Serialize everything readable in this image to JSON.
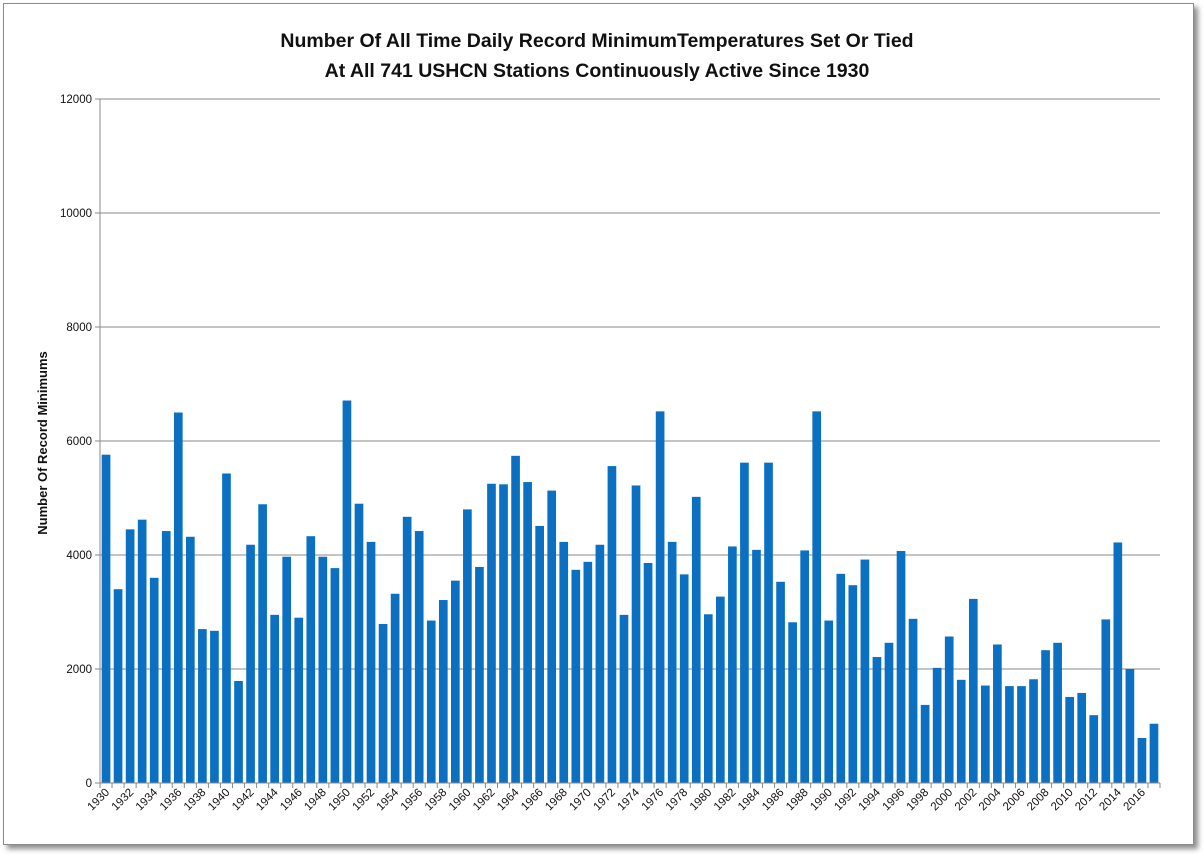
{
  "colors": {
    "bar": "#0b70c2",
    "grid": "#8a8a8a",
    "axis": "#8a8a8a",
    "frame_border": "#8c8c8c",
    "text": "#111111"
  },
  "chart_data": {
    "type": "bar",
    "title": "Number Of All Time Daily Record MinimumTemperatures Set Or Tied",
    "subtitle": "At All 741 USHCN Stations Continuously Active Since 1930",
    "xlabel": "",
    "ylabel": "Number Of Record Minimums",
    "ylim": [
      0,
      12000
    ],
    "yticks": [
      "0",
      "2000",
      "4000",
      "6000",
      "8000",
      "10000",
      "12000"
    ],
    "grid": true,
    "legend": "none",
    "categories": [
      "1930",
      "1931",
      "1932",
      "1933",
      "1934",
      "1935",
      "1936",
      "1937",
      "1938",
      "1939",
      "1940",
      "1941",
      "1942",
      "1943",
      "1944",
      "1945",
      "1946",
      "1947",
      "1948",
      "1949",
      "1950",
      "1951",
      "1952",
      "1953",
      "1954",
      "1955",
      "1956",
      "1957",
      "1958",
      "1959",
      "1960",
      "1961",
      "1962",
      "1963",
      "1964",
      "1965",
      "1966",
      "1967",
      "1968",
      "1969",
      "1970",
      "1971",
      "1972",
      "1973",
      "1974",
      "1975",
      "1976",
      "1977",
      "1978",
      "1979",
      "1980",
      "1981",
      "1982",
      "1983",
      "1984",
      "1985",
      "1986",
      "1987",
      "1988",
      "1989",
      "1990",
      "1991",
      "1992",
      "1993",
      "1994",
      "1995",
      "1996",
      "1997",
      "1998",
      "1999",
      "2000",
      "2001",
      "2002",
      "2003",
      "2004",
      "2005",
      "2006",
      "2007",
      "2008",
      "2009",
      "2010",
      "2011",
      "2012",
      "2013",
      "2014",
      "2015",
      "2016",
      "2017"
    ],
    "xtick_labels": [
      "1930",
      "1932",
      "1934",
      "1936",
      "1938",
      "1940",
      "1942",
      "1944",
      "1946",
      "1948",
      "1950",
      "1952",
      "1954",
      "1956",
      "1958",
      "1960",
      "1962",
      "1964",
      "1966",
      "1968",
      "1970",
      "1972",
      "1974",
      "1976",
      "1978",
      "1980",
      "1982",
      "1984",
      "1986",
      "1988",
      "1990",
      "1992",
      "1994",
      "1996",
      "1998",
      "2000",
      "2002",
      "2004",
      "2006",
      "2008",
      "2010",
      "2012",
      "2014",
      "2016"
    ],
    "values": [
      5760,
      3400,
      4450,
      4620,
      3600,
      4420,
      6500,
      4320,
      2700,
      2670,
      5430,
      1790,
      4180,
      4890,
      2950,
      3970,
      2900,
      4330,
      3970,
      3770,
      6710,
      4900,
      4230,
      2790,
      3320,
      4670,
      4420,
      2850,
      3210,
      3550,
      4800,
      3790,
      5250,
      5240,
      5740,
      5280,
      4510,
      5130,
      4230,
      3740,
      3880,
      4180,
      5560,
      2950,
      5220,
      3860,
      6520,
      4230,
      3660,
      5020,
      2960,
      3270,
      4150,
      5620,
      4090,
      5620,
      3530,
      2820,
      4080,
      6520,
      2850,
      3670,
      3470,
      3920,
      2210,
      2460,
      4070,
      2880,
      1370,
      2020,
      2570,
      1810,
      3230,
      1710,
      2430,
      1700,
      1700,
      1820,
      2330,
      2460,
      1510,
      1580,
      1190,
      2870,
      4220,
      2000,
      790,
      1040
    ]
  }
}
